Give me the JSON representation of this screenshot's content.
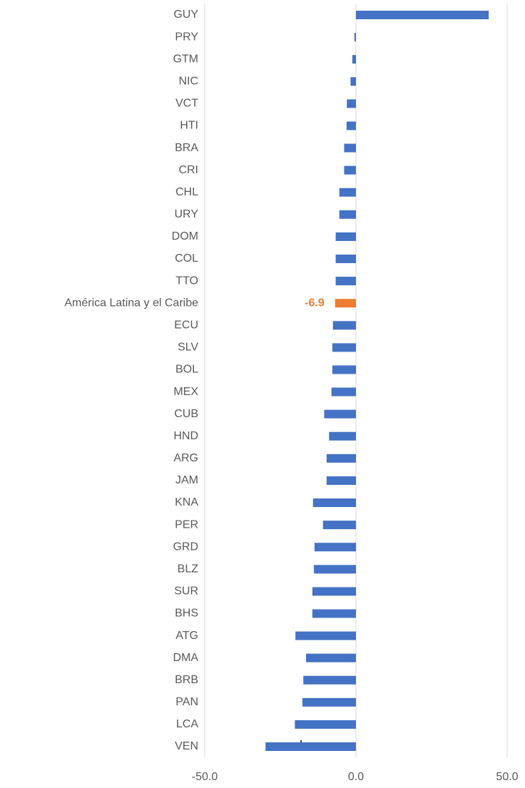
{
  "chart_data": {
    "type": "hbar",
    "categories": [
      "GUY",
      "PRY",
      "GTM",
      "NIC",
      "VCT",
      "HTI",
      "BRA",
      "CRI",
      "CHL",
      "URY",
      "DOM",
      "COL",
      "TTO",
      "América Latina y el Caribe",
      "ECU",
      "SLV",
      "BOL",
      "MEX",
      "CUB",
      "HND",
      "ARG",
      "JAM",
      "KNA",
      "PER",
      "GRD",
      "BLZ",
      "SUR",
      "BHS",
      "ATG",
      "DMA",
      "BRB",
      "PAN",
      "LCA",
      "VEN"
    ],
    "values": [
      43.9,
      -0.5,
      -1.2,
      -1.8,
      -3.0,
      -3.1,
      -3.9,
      -3.9,
      -5.5,
      -5.5,
      -6.7,
      -6.7,
      -6.7,
      -6.9,
      -7.6,
      -7.8,
      -7.8,
      -8.1,
      -10.5,
      -8.9,
      -9.7,
      -9.7,
      -14.2,
      -10.9,
      -13.7,
      -13.9,
      -14.4,
      -14.4,
      -20.0,
      -16.5,
      -17.4,
      -17.7,
      -20.2,
      -29.9
    ],
    "value_labels": [
      null,
      null,
      null,
      null,
      null,
      null,
      null,
      null,
      null,
      null,
      null,
      null,
      null,
      "-6.9",
      null,
      null,
      null,
      null,
      null,
      null,
      null,
      null,
      null,
      null,
      null,
      null,
      null,
      null,
      null,
      null,
      null,
      null,
      null,
      null
    ],
    "colors": [
      "#4472c4",
      "#4472c4",
      "#4472c4",
      "#4472c4",
      "#4472c4",
      "#4472c4",
      "#4472c4",
      "#4472c4",
      "#4472c4",
      "#4472c4",
      "#4472c4",
      "#4472c4",
      "#4472c4",
      "#ed7d31",
      "#4472c4",
      "#4472c4",
      "#4472c4",
      "#4472c4",
      "#4472c4",
      "#4472c4",
      "#4472c4",
      "#4472c4",
      "#4472c4",
      "#4472c4",
      "#4472c4",
      "#4472c4",
      "#4472c4",
      "#4472c4",
      "#4472c4",
      "#4472c4",
      "#4472c4",
      "#4472c4",
      "#4472c4",
      "#4472c4"
    ],
    "xlim": [
      -50,
      50
    ],
    "xticks": [
      {
        "value": -50,
        "label": "-50.0"
      },
      {
        "value": 0,
        "label": "0.0"
      },
      {
        "value": 50,
        "label": "50.0"
      }
    ],
    "grid": true,
    "annotation": "L"
  }
}
